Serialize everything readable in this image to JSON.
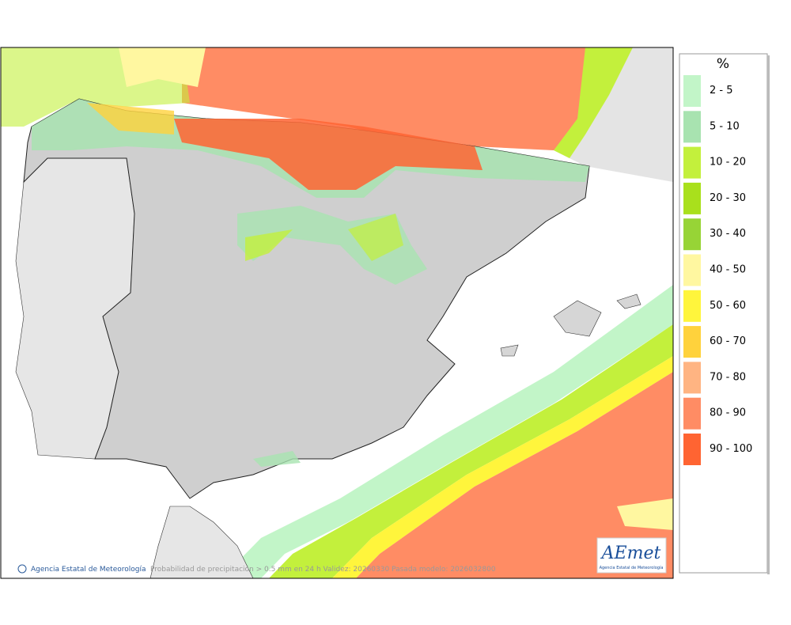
{
  "legend": {
    "title": "%",
    "items": [
      {
        "label": "2 - 5",
        "color": "#c2f5c8"
      },
      {
        "label": "5 - 10",
        "color": "#a8e3b0"
      },
      {
        "label": "10 - 20",
        "color": "#c3f03c"
      },
      {
        "label": "20 - 30",
        "color": "#a9e01c"
      },
      {
        "label": "30 - 40",
        "color": "#97d436"
      },
      {
        "label": "40 - 50",
        "color": "#fff7a0"
      },
      {
        "label": "50 - 60",
        "color": "#fff53c"
      },
      {
        "label": "60 - 70",
        "color": "#ffd23c"
      },
      {
        "label": "70 - 80",
        "color": "#ffb482"
      },
      {
        "label": "80 - 90",
        "color": "#ff8c64"
      },
      {
        "label": "90 - 100",
        "color": "#ff6432"
      }
    ]
  },
  "footer": {
    "credit": "Agencia Estatal de Meteorología",
    "caption": "Probabilidad de precipitación > 0.5 mm en 24 h Validez: 20260330 Pasada modelo: 2026032800"
  },
  "logo": {
    "text": "AEmet",
    "subtitle": "Agencia Estatal de Meteorología"
  }
}
